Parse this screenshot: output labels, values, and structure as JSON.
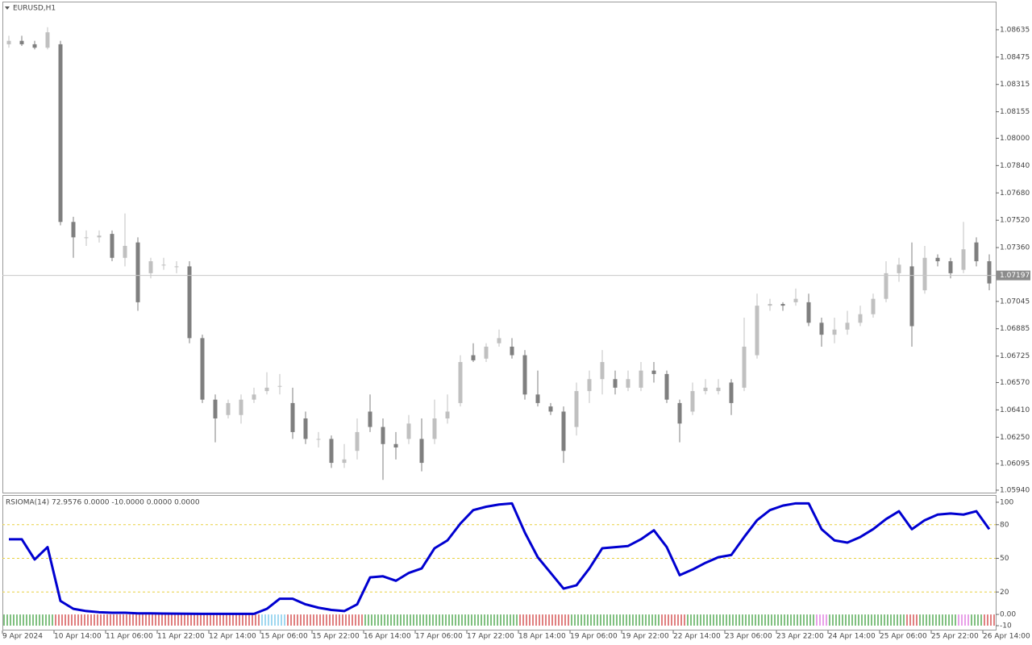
{
  "chart_data": [
    {
      "type": "candlestick",
      "title": "EURUSD,H1",
      "categories": [
        "9 Apr 2024",
        null,
        null,
        null,
        "10 Apr 14:00",
        null,
        null,
        null,
        "11 Apr 06:00",
        null,
        null,
        null,
        "11 Apr 22:00",
        null,
        null,
        null,
        "12 Apr 14:00",
        null,
        null,
        null,
        "15 Apr 06:00",
        null,
        null,
        null,
        "15 Apr 22:00",
        null,
        null,
        null,
        "16 Apr 14:00",
        null,
        null,
        null,
        "17 Apr 06:00",
        null,
        null,
        null,
        "17 Apr 22:00",
        null,
        null,
        null,
        "18 Apr 14:00",
        null,
        null,
        null,
        "19 Apr 06:00",
        null,
        null,
        null,
        "19 Apr 22:00",
        null,
        null,
        null,
        "22 Apr 14:00",
        null,
        null,
        null,
        "23 Apr 06:00",
        null,
        null,
        null,
        "23 Apr 22:00",
        null,
        null,
        null,
        "24 Apr 14:00",
        null,
        null,
        null,
        "25 Apr 06:00",
        null,
        null,
        null,
        "25 Apr 22:00",
        null,
        null,
        null,
        "26 Apr 14:00"
      ],
      "open": [
        1.0855,
        1.0857,
        1.0855,
        1.0853,
        1.0855,
        1.0751,
        1.0742,
        1.0742,
        1.0744,
        1.073,
        1.0739,
        1.0721,
        1.0726,
        1.0725,
        1.0725,
        1.0683,
        1.0647,
        1.0638,
        1.0638,
        1.0647,
        1.0652,
        1.0655,
        1.0645,
        1.0636,
        1.0624,
        1.0624,
        1.061,
        1.0617,
        1.064,
        1.0631,
        1.0621,
        1.0624,
        1.0624,
        1.0624,
        1.0636,
        1.0645,
        1.0673,
        1.0671,
        1.068,
        1.0678,
        1.0673,
        1.065,
        1.0643,
        1.064,
        1.0631,
        1.0652,
        1.0659,
        1.0659,
        1.0654,
        1.0654,
        1.0664,
        1.0662,
        1.0645,
        1.064,
        1.0652,
        1.0652,
        1.0657,
        1.0654,
        1.0673,
        1.0702,
        1.0703,
        1.0704,
        1.0704,
        1.0692,
        1.0685,
        1.0688,
        1.0692,
        1.0697,
        1.0706,
        1.0721,
        1.0725,
        1.0711,
        1.073,
        1.0728,
        1.0723,
        1.0739,
        1.0728
      ],
      "high": [
        1.086,
        1.086,
        1.0857,
        1.0865,
        1.0857,
        1.0754,
        1.0746,
        1.0746,
        1.0746,
        1.0756,
        1.0742,
        1.073,
        1.073,
        1.0728,
        1.0728,
        1.0685,
        1.065,
        1.0647,
        1.065,
        1.0654,
        1.0663,
        1.0662,
        1.0654,
        1.064,
        1.0628,
        1.0626,
        1.0621,
        1.0636,
        1.065,
        1.0636,
        1.0628,
        1.0638,
        1.0636,
        1.0647,
        1.065,
        1.0673,
        1.068,
        1.068,
        1.0688,
        1.0683,
        1.0676,
        1.0664,
        1.0645,
        1.0643,
        1.0657,
        1.0664,
        1.0676,
        1.0664,
        1.0664,
        1.0669,
        1.0669,
        1.0664,
        1.0647,
        1.0657,
        1.0659,
        1.0659,
        1.0659,
        1.0695,
        1.0709,
        1.0706,
        1.0704,
        1.0712,
        1.0709,
        1.0695,
        1.0695,
        1.0699,
        1.0702,
        1.0709,
        1.0728,
        1.073,
        1.0739,
        1.0737,
        1.0732,
        1.073,
        1.0751,
        1.0742,
        1.0732
      ],
      "low": [
        1.0853,
        1.0854,
        1.0852,
        1.0852,
        1.0749,
        1.073,
        1.0737,
        1.0739,
        1.0728,
        1.0725,
        1.0699,
        1.0718,
        1.0723,
        1.0721,
        1.068,
        1.0645,
        1.0622,
        1.0636,
        1.0633,
        1.0645,
        1.065,
        1.065,
        1.0624,
        1.0621,
        1.0619,
        1.0607,
        1.0607,
        1.0612,
        1.0628,
        1.06,
        1.0612,
        1.0621,
        1.0605,
        1.0621,
        1.0633,
        1.0643,
        1.0669,
        1.0669,
        1.0678,
        1.0671,
        1.0647,
        1.0643,
        1.0638,
        1.061,
        1.0626,
        1.0645,
        1.065,
        1.065,
        1.0652,
        1.0652,
        1.0657,
        1.0645,
        1.0622,
        1.0638,
        1.065,
        1.065,
        1.0638,
        1.0652,
        1.0671,
        1.0699,
        1.0699,
        1.0702,
        1.069,
        1.0678,
        1.068,
        1.0685,
        1.069,
        1.0695,
        1.0704,
        1.0716,
        1.0678,
        1.0709,
        1.0725,
        1.0718,
        1.0721,
        1.0725,
        1.0711
      ],
      "close": [
        1.0857,
        1.0855,
        1.0853,
        1.0862,
        1.0751,
        1.0742,
        1.0742,
        1.0743,
        1.073,
        1.0737,
        1.0704,
        1.0728,
        1.0726,
        1.0725,
        1.0683,
        1.0647,
        1.0636,
        1.0645,
        1.0647,
        1.065,
        1.0654,
        1.0655,
        1.0628,
        1.0624,
        1.0624,
        1.061,
        1.0612,
        1.0628,
        1.0631,
        1.0621,
        1.0619,
        1.0633,
        1.061,
        1.0636,
        1.064,
        1.0669,
        1.067,
        1.0678,
        1.0683,
        1.0673,
        1.065,
        1.0645,
        1.064,
        1.0617,
        1.0652,
        1.0659,
        1.0669,
        1.0654,
        1.0659,
        1.0664,
        1.0662,
        1.0647,
        1.0633,
        1.0652,
        1.0654,
        1.0654,
        1.0645,
        1.0678,
        1.0702,
        1.0703,
        1.0702,
        1.0706,
        1.0692,
        1.0685,
        1.0688,
        1.0692,
        1.0697,
        1.0706,
        1.0721,
        1.0726,
        1.069,
        1.073,
        1.0728,
        1.0721,
        1.0735,
        1.0728,
        1.0715
      ],
      "up_color": "#c0c0c0",
      "down_color": "#7f7f7f",
      "current_price": 1.07197,
      "ylim": [
        1.05921,
        1.08795
      ],
      "yticks": [
        1.08635,
        1.08475,
        1.08315,
        1.08155,
        {
          "value": 1.08,
          "label": "1.08000"
        },
        {
          "value": 1.0784,
          "label": "1.07840"
        },
        {
          "value": 1.0768,
          "label": "1.07680"
        },
        {
          "value": 1.0752,
          "label": "1.07520"
        },
        {
          "value": 1.0736,
          "label": "1.07360"
        },
        1.07045,
        1.06885,
        1.06725,
        {
          "value": 1.0657,
          "label": "1.06570"
        },
        {
          "value": 1.0641,
          "label": "1.06410"
        },
        {
          "value": 1.0625,
          "label": "1.06250"
        },
        1.06095,
        {
          "value": 1.0594,
          "label": "1.05940"
        }
      ]
    },
    {
      "type": "line",
      "title": "RSIOMA(14) 72.9576 0.0000 -10.0000 0.0000 0.0000",
      "color": "#0000d0",
      "values": [
        67,
        67,
        49,
        60,
        12,
        5,
        3,
        2,
        1.5,
        1.5,
        1,
        1,
        0.8,
        0.7,
        0.6,
        0.5,
        0.5,
        0.5,
        0.5,
        0.5,
        5,
        14,
        14,
        9,
        6,
        4,
        3,
        9,
        33,
        34,
        30,
        37,
        41,
        59,
        66,
        81,
        93,
        96,
        98,
        99,
        73,
        51,
        37,
        23,
        26,
        41,
        59,
        60,
        61,
        67,
        75,
        60,
        35,
        40,
        46,
        51,
        53,
        69,
        84,
        93,
        97,
        99,
        99,
        76,
        66,
        64,
        69,
        76,
        85,
        92,
        76,
        84,
        89,
        90,
        89,
        92,
        76
      ],
      "histogram": {
        "values": [
          -10,
          -10,
          -10,
          -10,
          -10,
          -10,
          -10,
          -10,
          -10,
          -10,
          -10,
          -10,
          -10,
          -10,
          -10,
          -10,
          -10,
          -10,
          -10,
          -10,
          -10,
          -10,
          -10,
          -10,
          -10,
          -10,
          -10,
          -10,
          -10,
          -10,
          -10,
          -10,
          -10,
          -10,
          -10,
          -10,
          -10,
          -10,
          -10,
          -10,
          -10,
          -10,
          -10,
          -10,
          -10,
          -10,
          -10,
          -10,
          -10,
          -10,
          -10,
          -10,
          -10,
          -10,
          -10,
          -10,
          -10,
          -10,
          -10,
          -10,
          -10,
          -10,
          -10,
          -10,
          -10,
          -10,
          -10,
          -10,
          -10,
          -10,
          -10,
          -10,
          -10,
          -10,
          -10,
          -10,
          -10
        ],
        "colors": [
          "#008000",
          "#008000",
          "#008000",
          "#008000",
          "#c00000",
          "#c00000",
          "#c00000",
          "#c00000",
          "#c00000",
          "#c00000",
          "#c00000",
          "#c00000",
          "#c00000",
          "#c00000",
          "#c00000",
          "#c00000",
          "#c00000",
          "#c00000",
          "#c00000",
          "#c00000",
          "#40b0e0",
          "#40b0e0",
          "#c00000",
          "#c00000",
          "#c00000",
          "#c00000",
          "#c00000",
          "#c00000",
          "#008000",
          "#008000",
          "#008000",
          "#008000",
          "#008000",
          "#008000",
          "#008000",
          "#008000",
          "#008000",
          "#008000",
          "#008000",
          "#008000",
          "#c00000",
          "#c00000",
          "#c00000",
          "#c00000",
          "#008000",
          "#008000",
          "#008000",
          "#008000",
          "#008000",
          "#008000",
          "#008000",
          "#c00000",
          "#c00000",
          "#008000",
          "#008000",
          "#008000",
          "#008000",
          "#008000",
          "#008000",
          "#008000",
          "#008000",
          "#008000",
          "#008000",
          "#d040d0",
          "#008000",
          "#008000",
          "#008000",
          "#008000",
          "#008000",
          "#008000",
          "#c00000",
          "#008000",
          "#008000",
          "#008000",
          "#d040d0",
          "#008000",
          "#c00000"
        ]
      },
      "levels": [
        80,
        50,
        20
      ],
      "level_color": "#e8d040",
      "ylim": [
        -14.3,
        105.7
      ],
      "yticks": [
        100,
        80,
        50,
        20,
        {
          "value": 0,
          "label": "0.00"
        },
        -10
      ]
    }
  ]
}
